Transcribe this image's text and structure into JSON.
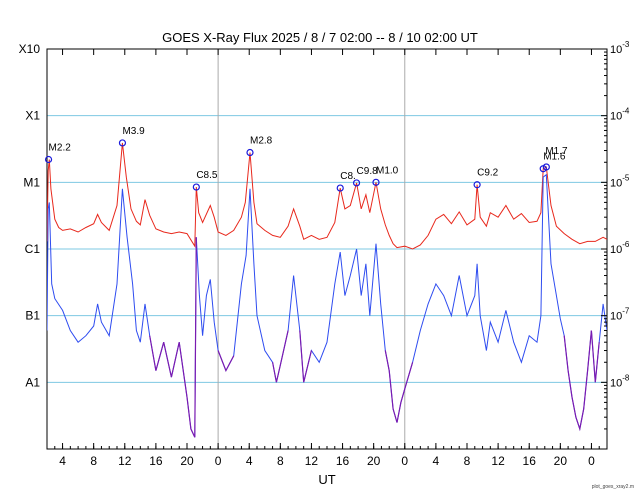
{
  "chart_data": {
    "type": "line",
    "title": "GOES X-Ray Flux   2025 /  8 /  7   02:00 --  8 / 10   02:00   UT",
    "xlabel": "UT",
    "credit": "plot_goes_xray2.m",
    "x_range_hours": [
      0,
      72
    ],
    "x_ticks": [
      {
        "h": 2,
        "label": "4"
      },
      {
        "h": 6,
        "label": "8"
      },
      {
        "h": 10,
        "label": "12"
      },
      {
        "h": 14,
        "label": "16"
      },
      {
        "h": 18,
        "label": "20"
      },
      {
        "h": 22,
        "label": "0"
      },
      {
        "h": 26,
        "label": "4"
      },
      {
        "h": 30,
        "label": "8"
      },
      {
        "h": 34,
        "label": "12"
      },
      {
        "h": 38,
        "label": "16"
      },
      {
        "h": 42,
        "label": "20"
      },
      {
        "h": 46,
        "label": "0"
      },
      {
        "h": 50,
        "label": "4"
      },
      {
        "h": 54,
        "label": "8"
      },
      {
        "h": 58,
        "label": "12"
      },
      {
        "h": 62,
        "label": "16"
      },
      {
        "h": 66,
        "label": "20"
      },
      {
        "h": 70,
        "label": "0"
      }
    ],
    "day_boundaries_hours": [
      22,
      46
    ],
    "y_scale": "log",
    "y_range": [
      1e-09,
      0.001
    ],
    "left_ticks": [
      {
        "value": 0.001,
        "label": "X10"
      },
      {
        "value": 0.0001,
        "label": "X1"
      },
      {
        "value": 1e-05,
        "label": "M1"
      },
      {
        "value": 1e-06,
        "label": "C1"
      },
      {
        "value": 1e-07,
        "label": "B1"
      },
      {
        "value": 1e-08,
        "label": "A1"
      }
    ],
    "right_ticks": [
      {
        "value": 0.001,
        "base": "10",
        "exp": "-3"
      },
      {
        "value": 0.0001,
        "base": "10",
        "exp": "-4"
      },
      {
        "value": 1e-05,
        "base": "10",
        "exp": "-5"
      },
      {
        "value": 1e-06,
        "base": "10",
        "exp": "-6"
      },
      {
        "value": 1e-07,
        "base": "10",
        "exp": "-7"
      },
      {
        "value": 1e-08,
        "base": "10",
        "exp": "-8"
      }
    ],
    "grid": "horizontal at each decade",
    "colors": {
      "long": "#e8281c",
      "short": "#2e4cf0",
      "short_low": "#7a1ab0",
      "flare_segment": "#f08020",
      "grid": "#7ec8e3",
      "day_line": "#aaaaaa",
      "marker": "#1a1adc"
    },
    "flares": [
      {
        "label": "M2.2",
        "h": 0.2,
        "flux": 2.2e-05
      },
      {
        "label": "M3.9",
        "h": 9.7,
        "flux": 3.9e-05
      },
      {
        "label": "C8.5",
        "h": 19.2,
        "flux": 8.5e-06
      },
      {
        "label": "M2.8",
        "h": 26.1,
        "flux": 2.8e-05
      },
      {
        "label": "C8.",
        "h": 37.7,
        "flux": 8.2e-06
      },
      {
        "label": "C9.8",
        "h": 39.8,
        "flux": 9.8e-06
      },
      {
        "label": "M1.0",
        "h": 42.3,
        "flux": 1e-05
      },
      {
        "label": "C9.2",
        "h": 55.3,
        "flux": 9.2e-06
      },
      {
        "label": "M1.6",
        "h": 63.8,
        "flux": 1.6e-05
      },
      {
        "label": "M1.7",
        "h": 64.2,
        "flux": 1.7e-05
      }
    ],
    "series": [
      {
        "name": "",
        "channel": "long",
        "points": [
          [
            0.0,
            1.3e-06
          ],
          [
            0.15,
            1.5e-05
          ],
          [
            0.3,
            2.2e-05
          ],
          [
            0.5,
            8e-06
          ],
          [
            1.0,
            2.8e-06
          ],
          [
            1.5,
            2.1e-06
          ],
          [
            2.0,
            1.9e-06
          ],
          [
            3.0,
            2e-06
          ],
          [
            4.0,
            1.8e-06
          ],
          [
            5.0,
            2.1e-06
          ],
          [
            6.0,
            2.4e-06
          ],
          [
            6.5,
            3.3e-06
          ],
          [
            7.0,
            2.5e-06
          ],
          [
            8.0,
            1.9e-06
          ],
          [
            9.0,
            4.5e-06
          ],
          [
            9.7,
            3.9e-05
          ],
          [
            10.2,
            1.2e-05
          ],
          [
            10.8,
            4e-06
          ],
          [
            11.5,
            2.6e-06
          ],
          [
            12.0,
            2.3e-06
          ],
          [
            12.6,
            5.5e-06
          ],
          [
            13.2,
            3.2e-06
          ],
          [
            14.0,
            2e-06
          ],
          [
            15.0,
            1.8e-06
          ],
          [
            16.0,
            1.7e-06
          ],
          [
            17.0,
            1.8e-06
          ],
          [
            18.0,
            1.7e-06
          ],
          [
            19.0,
            1.1e-06
          ],
          [
            19.2,
            8.5e-06
          ],
          [
            19.5,
            3.5e-06
          ],
          [
            20.0,
            2.5e-06
          ],
          [
            21.0,
            4.5e-06
          ],
          [
            21.5,
            3e-06
          ],
          [
            22.0,
            1.8e-06
          ],
          [
            23.0,
            1.6e-06
          ],
          [
            24.0,
            1.9e-06
          ],
          [
            25.0,
            3e-06
          ],
          [
            25.5,
            5e-06
          ],
          [
            26.1,
            2.8e-05
          ],
          [
            26.6,
            5e-06
          ],
          [
            27.0,
            2.4e-06
          ],
          [
            28.0,
            1.9e-06
          ],
          [
            29.0,
            1.6e-06
          ],
          [
            30.0,
            1.5e-06
          ],
          [
            31.0,
            2.2e-06
          ],
          [
            31.7,
            4e-06
          ],
          [
            32.5,
            2.2e-06
          ],
          [
            33.0,
            1.4e-06
          ],
          [
            34.0,
            1.6e-06
          ],
          [
            35.0,
            1.4e-06
          ],
          [
            36.0,
            1.5e-06
          ],
          [
            37.0,
            2.5e-06
          ],
          [
            37.7,
            8.2e-06
          ],
          [
            38.3,
            4e-06
          ],
          [
            39.0,
            4.5e-06
          ],
          [
            39.8,
            9.8e-06
          ],
          [
            40.4,
            4e-06
          ],
          [
            41.0,
            6.5e-06
          ],
          [
            41.5,
            3.5e-06
          ],
          [
            42.3,
            1e-05
          ],
          [
            42.9,
            4e-06
          ],
          [
            43.5,
            2.3e-06
          ],
          [
            44.0,
            1.6e-06
          ],
          [
            44.5,
            1.2e-06
          ],
          [
            45.0,
            1.05e-06
          ],
          [
            46.0,
            1.1e-06
          ],
          [
            47.0,
            1e-06
          ],
          [
            48.0,
            1.15e-06
          ],
          [
            49.0,
            1.6e-06
          ],
          [
            50.0,
            2.8e-06
          ],
          [
            51.0,
            3.3e-06
          ],
          [
            52.0,
            2.4e-06
          ],
          [
            53.0,
            3.6e-06
          ],
          [
            54.0,
            2.3e-06
          ],
          [
            55.0,
            2.8e-06
          ],
          [
            55.3,
            9.2e-06
          ],
          [
            55.7,
            3e-06
          ],
          [
            56.5,
            2.2e-06
          ],
          [
            57.0,
            3.5e-06
          ],
          [
            58.0,
            3e-06
          ],
          [
            59.0,
            4.5e-06
          ],
          [
            60.0,
            2.8e-06
          ],
          [
            61.0,
            3.4e-06
          ],
          [
            62.0,
            2.5e-06
          ],
          [
            63.0,
            2.6e-06
          ],
          [
            63.5,
            3.5e-06
          ],
          [
            63.8,
            1.6e-05
          ],
          [
            64.2,
            1.7e-05
          ],
          [
            64.8,
            4.5e-06
          ],
          [
            65.5,
            2.2e-06
          ],
          [
            66.5,
            1.7e-06
          ],
          [
            67.5,
            1.4e-06
          ],
          [
            68.5,
            1.2e-06
          ],
          [
            69.5,
            1.3e-06
          ],
          [
            70.5,
            1.3e-06
          ],
          [
            71.5,
            1.5e-06
          ],
          [
            72.0,
            1.4e-06
          ]
        ]
      },
      {
        "name": "",
        "channel": "short",
        "points": [
          [
            0.0,
            6e-08
          ],
          [
            0.15,
            4e-06
          ],
          [
            0.3,
            5e-06
          ],
          [
            0.6,
            3e-07
          ],
          [
            1.0,
            1.8e-07
          ],
          [
            2.0,
            1.2e-07
          ],
          [
            3.0,
            6e-08
          ],
          [
            4.0,
            4e-08
          ],
          [
            5.0,
            5e-08
          ],
          [
            6.0,
            7e-08
          ],
          [
            6.5,
            1.5e-07
          ],
          [
            7.0,
            8e-08
          ],
          [
            8.0,
            5e-08
          ],
          [
            9.0,
            3e-07
          ],
          [
            9.7,
            8e-06
          ],
          [
            10.3,
            1.5e-06
          ],
          [
            11.0,
            3e-07
          ],
          [
            11.5,
            6e-08
          ],
          [
            12.0,
            4e-08
          ],
          [
            12.6,
            1.5e-07
          ],
          [
            13.2,
            5e-08
          ],
          [
            14.0,
            1.5e-08
          ],
          [
            15.0,
            4e-08
          ],
          [
            16.0,
            1.2e-08
          ],
          [
            17.0,
            4e-08
          ],
          [
            18.0,
            6e-09
          ],
          [
            18.5,
            2e-09
          ],
          [
            19.0,
            1.5e-09
          ],
          [
            19.2,
            1.5e-06
          ],
          [
            19.6,
            2e-07
          ],
          [
            20.0,
            5e-08
          ],
          [
            20.5,
            2e-07
          ],
          [
            21.0,
            3.5e-07
          ],
          [
            21.5,
            8e-08
          ],
          [
            22.0,
            3e-08
          ],
          [
            23.0,
            1.5e-08
          ],
          [
            24.0,
            2.5e-08
          ],
          [
            25.0,
            3e-07
          ],
          [
            25.6,
            8e-07
          ],
          [
            26.1,
            8e-06
          ],
          [
            26.6,
            6e-07
          ],
          [
            27.0,
            1e-07
          ],
          [
            28.0,
            3e-08
          ],
          [
            29.0,
            2e-08
          ],
          [
            29.5,
            1e-08
          ],
          [
            30.0,
            1.8e-08
          ],
          [
            31.0,
            6e-08
          ],
          [
            31.7,
            4e-07
          ],
          [
            32.5,
            6e-08
          ],
          [
            33.0,
            1e-08
          ],
          [
            34.0,
            3e-08
          ],
          [
            35.0,
            2e-08
          ],
          [
            36.0,
            4e-08
          ],
          [
            37.0,
            3e-07
          ],
          [
            37.7,
            9e-07
          ],
          [
            38.3,
            2e-07
          ],
          [
            39.0,
            4e-07
          ],
          [
            39.8,
            1e-06
          ],
          [
            40.4,
            2e-07
          ],
          [
            41.0,
            6e-07
          ],
          [
            41.5,
            1e-07
          ],
          [
            42.3,
            1.2e-06
          ],
          [
            42.9,
            1.5e-07
          ],
          [
            43.5,
            3e-08
          ],
          [
            44.0,
            1.5e-08
          ],
          [
            44.5,
            4e-09
          ],
          [
            45.0,
            2.5e-09
          ],
          [
            45.5,
            5e-09
          ],
          [
            46.0,
            8e-09
          ],
          [
            47.0,
            2e-08
          ],
          [
            48.0,
            6e-08
          ],
          [
            49.0,
            1.5e-07
          ],
          [
            50.0,
            3e-07
          ],
          [
            51.0,
            2e-07
          ],
          [
            52.0,
            1e-07
          ],
          [
            53.0,
            4e-07
          ],
          [
            54.0,
            1e-07
          ],
          [
            55.0,
            2e-07
          ],
          [
            55.3,
            6e-07
          ],
          [
            55.7,
            1e-07
          ],
          [
            56.5,
            3e-08
          ],
          [
            57.0,
            8e-08
          ],
          [
            58.0,
            4e-08
          ],
          [
            59.0,
            1.2e-07
          ],
          [
            60.0,
            4e-08
          ],
          [
            61.0,
            2e-08
          ],
          [
            62.0,
            5e-08
          ],
          [
            63.0,
            4e-08
          ],
          [
            63.5,
            1e-07
          ],
          [
            63.8,
            1.2e-05
          ],
          [
            64.2,
            1.3e-05
          ],
          [
            64.8,
            6e-07
          ],
          [
            65.5,
            2e-07
          ],
          [
            66.0,
            9e-08
          ],
          [
            66.5,
            5e-08
          ],
          [
            67.0,
            1.5e-08
          ],
          [
            67.5,
            6e-09
          ],
          [
            68.0,
            3e-09
          ],
          [
            68.5,
            2e-09
          ],
          [
            69.0,
            4e-09
          ],
          [
            69.5,
            1.5e-08
          ],
          [
            70.0,
            6e-08
          ],
          [
            70.5,
            1e-08
          ],
          [
            71.0,
            4e-08
          ],
          [
            71.5,
            1.5e-07
          ],
          [
            72.0,
            6e-08
          ]
        ]
      }
    ]
  }
}
